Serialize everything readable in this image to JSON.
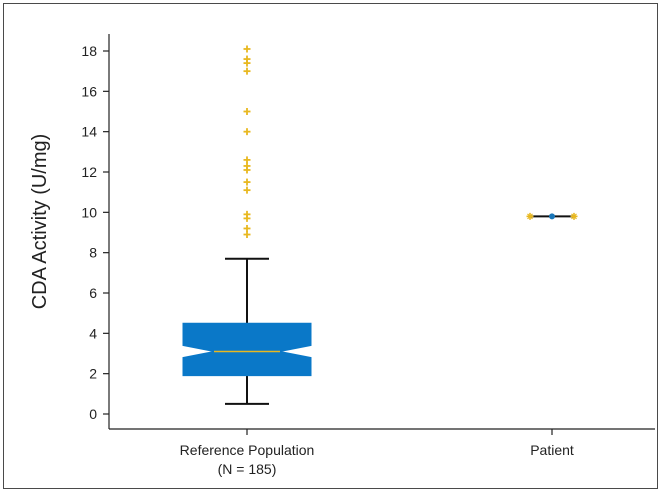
{
  "chart_data": {
    "type": "boxplot",
    "ylabel": "CDA Activity (U/mg)",
    "ylim": [
      -0.6,
      19.2
    ],
    "yticks": [
      0,
      2,
      4,
      6,
      8,
      10,
      12,
      14,
      16,
      18
    ],
    "grid": false,
    "categories": [
      {
        "label": "Reference Population",
        "sublabel": "(N = 185)"
      },
      {
        "label": "Patient",
        "sublabel": ""
      }
    ],
    "groups": [
      {
        "category": "Reference Population",
        "whisker_low": 0.5,
        "q1": 1.9,
        "median": 3.1,
        "q3": 4.5,
        "whisker_high": 7.7,
        "notch_low": 2.8,
        "notch_high": 3.4,
        "outliers": [
          8.9,
          9.2,
          9.7,
          9.9,
          11.1,
          11.5,
          12.1,
          12.3,
          12.6,
          14.0,
          15.0,
          17.0,
          17.4,
          17.6,
          18.1
        ]
      },
      {
        "category": "Patient",
        "value": 9.8
      }
    ],
    "colors": {
      "box": "#0a78c8",
      "median": "#e8b820",
      "outlier": "#e8b820",
      "whisker": "#111111",
      "patient_point": "#1976b8"
    }
  }
}
